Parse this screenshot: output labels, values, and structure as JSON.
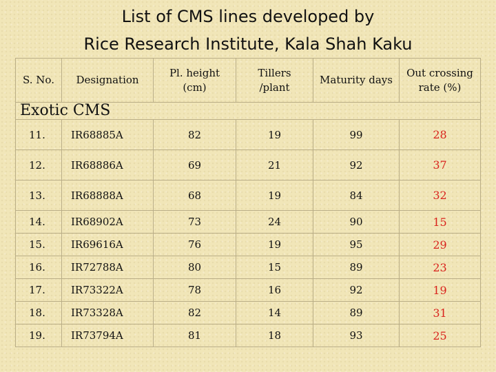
{
  "title": {
    "line1": "List of CMS lines developed by",
    "line2": "Rice Research Institute, Kala Shah Kaku"
  },
  "table": {
    "headers": {
      "sno": "S. No.",
      "designation": "Designation",
      "height": [
        "Pl. height",
        "(cm)"
      ],
      "tillers": [
        "Tillers",
        "/plant"
      ],
      "maturity": "Maturity days",
      "outcrossing": [
        "Out crossing",
        "rate (%)"
      ]
    },
    "section": "Exotic CMS",
    "rows": [
      {
        "sno": "11.",
        "designation": "IR68885A",
        "height": "82",
        "tillers": "19",
        "maturity": "99",
        "outcrossing": "28"
      },
      {
        "sno": "12.",
        "designation": "IR68886A",
        "height": "69",
        "tillers": "21",
        "maturity": "92",
        "outcrossing": "37"
      },
      {
        "sno": "13.",
        "designation": "IR68888A",
        "height": "68",
        "tillers": "19",
        "maturity": "84",
        "outcrossing": "32"
      },
      {
        "sno": "14.",
        "designation": "IR68902A",
        "height": "73",
        "tillers": "24",
        "maturity": "90",
        "outcrossing": "15"
      },
      {
        "sno": "15.",
        "designation": "IR69616A",
        "height": "76",
        "tillers": "19",
        "maturity": "95",
        "outcrossing": "29"
      },
      {
        "sno": "16.",
        "designation": "IR72788A",
        "height": "80",
        "tillers": "15",
        "maturity": "89",
        "outcrossing": "23"
      },
      {
        "sno": "17.",
        "designation": "IR73322A",
        "height": "78",
        "tillers": "16",
        "maturity": "92",
        "outcrossing": "19"
      },
      {
        "sno": "18.",
        "designation": "IR73328A",
        "height": "82",
        "tillers": "14",
        "maturity": "89",
        "outcrossing": "31"
      },
      {
        "sno": "19.",
        "designation": "IR73794A",
        "height": "81",
        "tillers": "18",
        "maturity": "93",
        "outcrossing": "25"
      }
    ]
  },
  "colors": {
    "background": "#f1e6b8",
    "outcrossing_text": "#d9231d",
    "grid": "#b9ad86"
  }
}
